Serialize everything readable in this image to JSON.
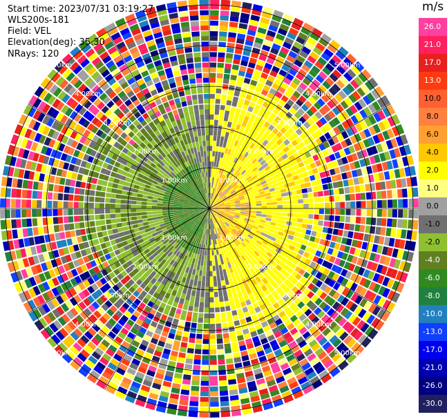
{
  "info": {
    "start_time": "Start time: 2023/07/31 03:19:27",
    "instrument": "WLS200s-181",
    "field": "Field: VEL",
    "elevation": "Elevation(deg): 35.30",
    "nrays": "NRays: 120"
  },
  "colorbar": {
    "unit": "m/s",
    "ticks": [
      "26.0",
      "21.0",
      "17.0",
      "13.0",
      "10.0",
      "8.0",
      "6.0",
      "4.0",
      "2.0",
      "1.0",
      "0.0",
      "-1.0",
      "-2.0",
      "-4.0",
      "-6.0",
      "-8.0",
      "-10.0",
      "-13.0",
      "-17.0",
      "-21.0",
      "-26.0",
      "-30.0"
    ],
    "colors": [
      "#ff40a0",
      "#ff2060",
      "#e82020",
      "#ff3a10",
      "#ff6030",
      "#ff8040",
      "#ffa030",
      "#ffc800",
      "#ffff00",
      "#ffff80",
      "#a0a0a0",
      "#707070",
      "#90c030",
      "#608020",
      "#308a20",
      "#208040",
      "#2080c0",
      "#1040ff",
      "#0000ee",
      "#0000b0",
      "#000080",
      "#202060"
    ]
  },
  "range_rings": {
    "labels": [
      "1.00km",
      "2.00km",
      "3.00km",
      "4.00km",
      "5.00km"
    ],
    "values_km": [
      1,
      2,
      3,
      4,
      5
    ]
  }
}
